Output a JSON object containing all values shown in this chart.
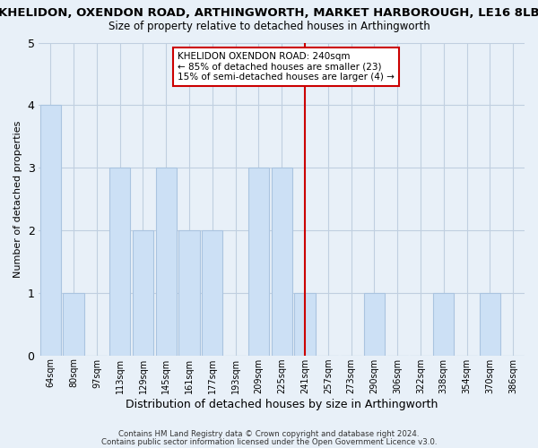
{
  "title_line1": "KHELIDON, OXENDON ROAD, ARTHINGWORTH, MARKET HARBOROUGH, LE16 8LB",
  "title_line2": "Size of property relative to detached houses in Arthingworth",
  "xlabel": "Distribution of detached houses by size in Arthingworth",
  "ylabel": "Number of detached properties",
  "bar_labels": [
    "64sqm",
    "80sqm",
    "97sqm",
    "113sqm",
    "129sqm",
    "145sqm",
    "161sqm",
    "177sqm",
    "193sqm",
    "209sqm",
    "225sqm",
    "241sqm",
    "257sqm",
    "273sqm",
    "290sqm",
    "306sqm",
    "322sqm",
    "338sqm",
    "354sqm",
    "370sqm",
    "386sqm"
  ],
  "bar_heights": [
    4,
    1,
    0,
    3,
    2,
    3,
    2,
    2,
    0,
    3,
    3,
    1,
    0,
    0,
    1,
    0,
    0,
    1,
    0,
    1,
    0
  ],
  "bar_color": "#cce0f5",
  "bar_edge_color": "#aac4e0",
  "vline_x_index": 11,
  "vline_color": "#cc0000",
  "annotation_title": "KHELIDON OXENDON ROAD: 240sqm",
  "annotation_line1": "← 85% of detached houses are smaller (23)",
  "annotation_line2": "15% of semi-detached houses are larger (4) →",
  "annotation_box_color": "#ffffff",
  "annotation_box_edge": "#cc0000",
  "ylim": [
    0,
    5
  ],
  "yticks": [
    0,
    1,
    2,
    3,
    4,
    5
  ],
  "footer_line1": "Contains HM Land Registry data © Crown copyright and database right 2024.",
  "footer_line2": "Contains public sector information licensed under the Open Government Licence v3.0.",
  "bg_color": "#e8f0f8",
  "plot_bg_color": "#e8f0f8",
  "grid_color": "#c0cfe0"
}
